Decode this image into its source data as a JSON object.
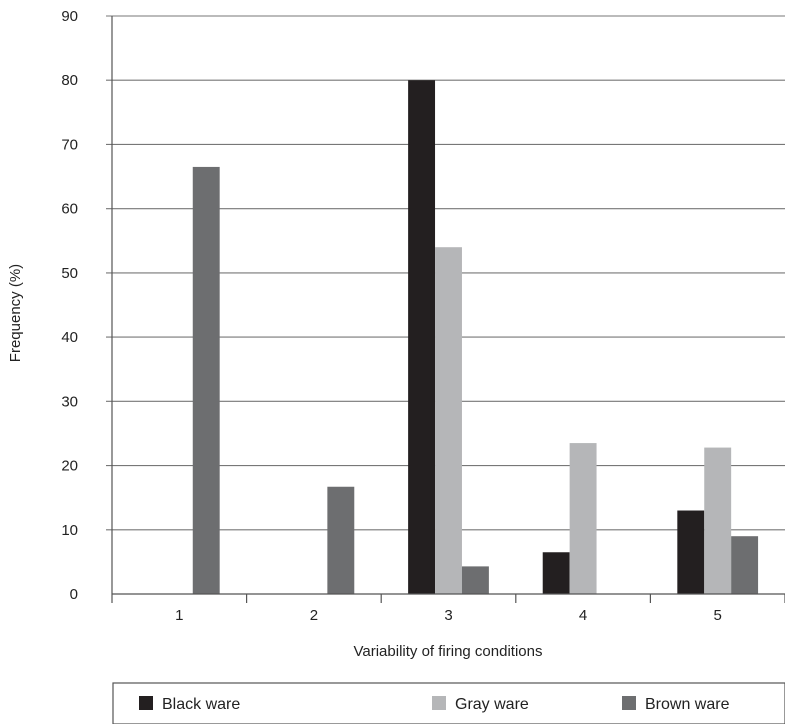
{
  "chart_data": {
    "type": "bar",
    "xlabel": "Variability of firing conditions",
    "ylabel": "Frequency (%)",
    "ylim": [
      0,
      90
    ],
    "yticks": [
      0,
      10,
      20,
      30,
      40,
      50,
      60,
      70,
      80,
      90
    ],
    "categories": [
      "1",
      "2",
      "3",
      "4",
      "5"
    ],
    "grid": "horizontal",
    "legend_position": "bottom",
    "series": [
      {
        "name": "Black ware",
        "color": "#231f20",
        "values": [
          0,
          0,
          80,
          6.5,
          13
        ]
      },
      {
        "name": "Gray ware",
        "color": "#b5b6b8",
        "values": [
          0,
          0,
          54,
          23.5,
          22.8
        ]
      },
      {
        "name": "Brown ware",
        "color": "#6d6e70",
        "values": [
          66.5,
          16.7,
          4.3,
          0,
          9
        ]
      }
    ]
  }
}
